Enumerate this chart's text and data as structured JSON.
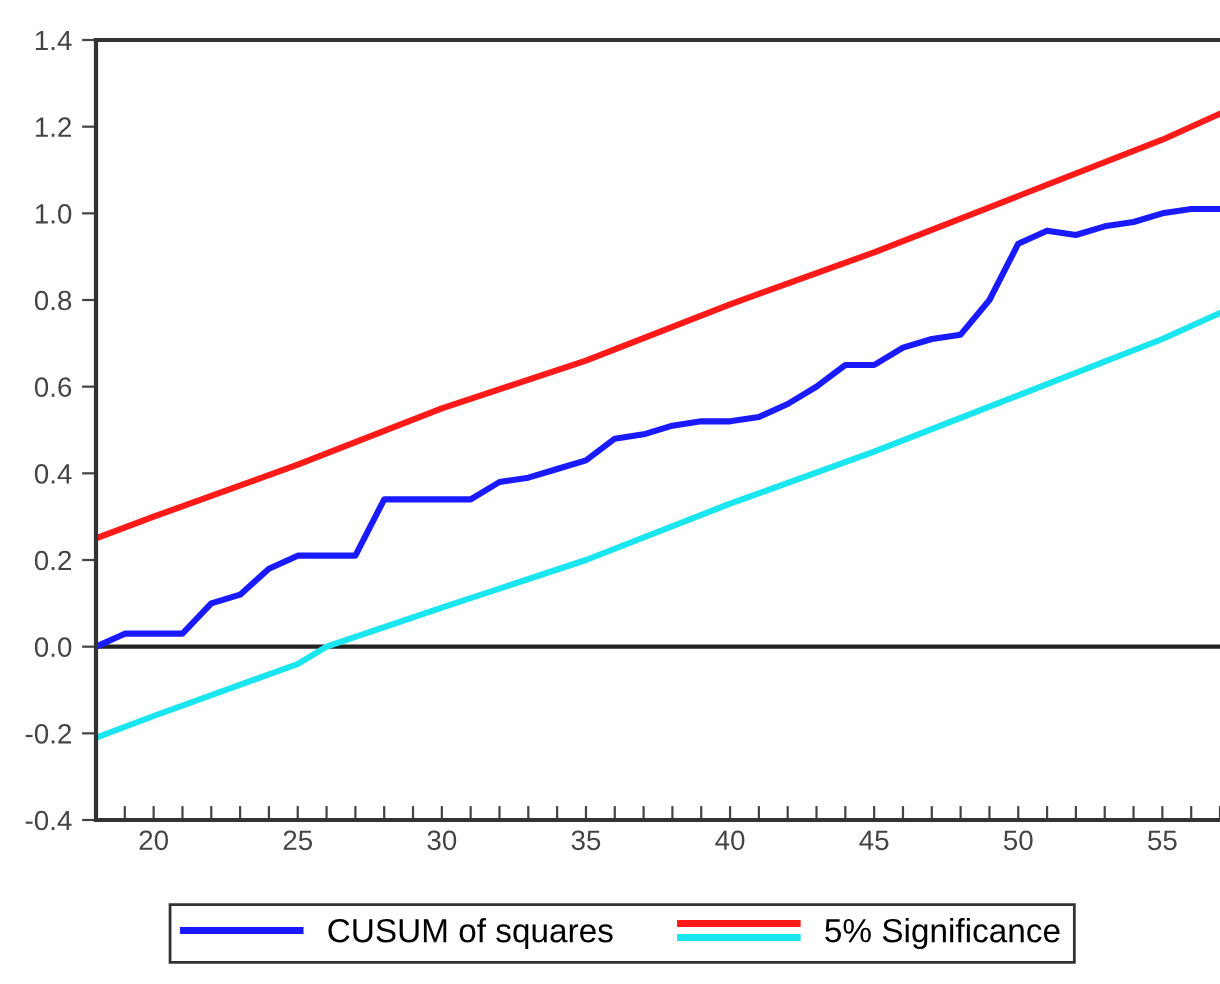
{
  "chart_data": {
    "type": "line",
    "xlim": [
      18,
      57
    ],
    "ylim": [
      -0.4,
      1.4
    ],
    "xticks": [
      {
        "value": 18,
        "label": null
      },
      {
        "value": 19,
        "label": null
      },
      20,
      {
        "value": 21,
        "label": null
      },
      {
        "value": 22,
        "label": null
      },
      {
        "value": 23,
        "label": null
      },
      {
        "value": 24,
        "label": null
      },
      25,
      {
        "value": 26,
        "label": null
      },
      {
        "value": 27,
        "label": null
      },
      {
        "value": 28,
        "label": null
      },
      {
        "value": 29,
        "label": null
      },
      30,
      {
        "value": 31,
        "label": null
      },
      {
        "value": 32,
        "label": null
      },
      {
        "value": 33,
        "label": null
      },
      {
        "value": 34,
        "label": null
      },
      35,
      {
        "value": 36,
        "label": null
      },
      {
        "value": 37,
        "label": null
      },
      {
        "value": 38,
        "label": null
      },
      {
        "value": 39,
        "label": null
      },
      40,
      {
        "value": 41,
        "label": null
      },
      {
        "value": 42,
        "label": null
      },
      {
        "value": 43,
        "label": null
      },
      {
        "value": 44,
        "label": null
      },
      45,
      {
        "value": 46,
        "label": null
      },
      {
        "value": 47,
        "label": null
      },
      {
        "value": 48,
        "label": null
      },
      {
        "value": 49,
        "label": null
      },
      50,
      {
        "value": 51,
        "label": null
      },
      {
        "value": 52,
        "label": null
      },
      {
        "value": 53,
        "label": null
      },
      {
        "value": 54,
        "label": null
      },
      55,
      {
        "value": 56,
        "label": null
      },
      {
        "value": 57,
        "label": null
      }
    ],
    "yticks": [
      {
        "value": -0.4,
        "label": "-0.4"
      },
      {
        "value": -0.2,
        "label": "-0.2"
      },
      {
        "value": 0,
        "label": "0.0"
      },
      {
        "value": 0.2,
        "label": "0.2"
      },
      {
        "value": 0.4,
        "label": "0.4"
      },
      {
        "value": 0.6,
        "label": "0.6"
      },
      {
        "value": 0.8,
        "label": "0.8"
      },
      {
        "value": 1,
        "label": "1.0"
      },
      {
        "value": 1.2,
        "label": "1.2"
      },
      {
        "value": 1.4,
        "label": "1.4"
      }
    ],
    "series": [
      {
        "name": "CUSUM of squares",
        "color": "#1a1aff",
        "x": [
          18,
          19,
          20,
          21,
          22,
          23,
          24,
          25,
          26,
          27,
          28,
          29,
          30,
          31,
          32,
          33,
          34,
          35,
          36,
          37,
          38,
          39,
          40,
          41,
          42,
          43,
          44,
          45,
          46,
          47,
          48,
          49,
          50,
          51,
          52,
          53,
          54,
          55,
          56,
          57
        ],
        "values": [
          0,
          0.03,
          0.03,
          0.03,
          0.1,
          0.12,
          0.18,
          0.21,
          0.21,
          0.21,
          0.34,
          0.34,
          0.34,
          0.34,
          0.38,
          0.39,
          0.41,
          0.43,
          0.48,
          0.49,
          0.51,
          0.52,
          0.52,
          0.53,
          0.56,
          0.6,
          0.65,
          0.65,
          0.69,
          0.71,
          0.72,
          0.8,
          0.93,
          0.96,
          0.95,
          0.97,
          0.98,
          1.0,
          1.01,
          1.01
        ]
      },
      {
        "name": "5% Significance",
        "color": "#ff1a1a",
        "x": [
          18,
          20,
          25,
          30,
          35,
          40,
          45,
          50,
          55,
          57
        ],
        "values": [
          0.25,
          0.3,
          0.42,
          0.55,
          0.66,
          0.79,
          0.91,
          1.04,
          1.17,
          1.23
        ]
      },
      {
        "color": "#1ae6f0",
        "x": [
          18,
          20,
          25,
          26,
          30,
          35,
          40,
          45,
          50,
          55,
          57
        ],
        "values": [
          -0.21,
          -0.16,
          -0.04,
          0,
          0.09,
          0.2,
          0.33,
          0.45,
          0.58,
          0.71,
          0.77
        ]
      }
    ],
    "ref_lines": [
      {
        "axis": "y",
        "value": 0,
        "color": "#222222"
      }
    ],
    "grid": false,
    "legend": "bottom",
    "marker": "none",
    "line_style": "solid"
  }
}
